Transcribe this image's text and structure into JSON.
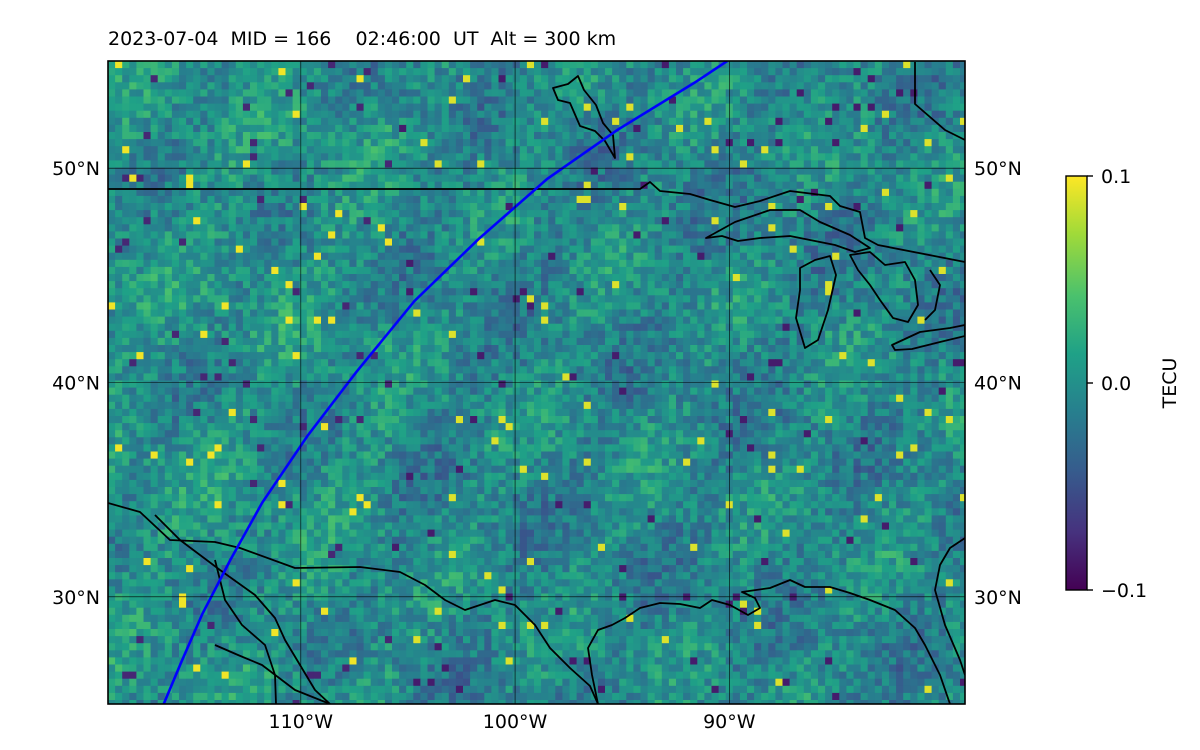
{
  "title": "2023-07-04  MID = 166    02:46:00  UT  Alt = 300 km",
  "map": {
    "lon_range": [
      -119,
      -79
    ],
    "lat_range": [
      25,
      55
    ],
    "lat_ticks": [
      {
        "value": 50,
        "label": "50°N"
      },
      {
        "value": 40,
        "label": "40°N"
      },
      {
        "value": 30,
        "label": "30°N"
      }
    ],
    "lon_ticks": [
      {
        "value": -110,
        "label": "110°W"
      },
      {
        "value": -100,
        "label": "100°W"
      },
      {
        "value": -90,
        "label": "90°W"
      }
    ],
    "satellite_track_color": "#0000ff",
    "satellite_track": [
      [
        -116.4,
        25.0
      ],
      [
        -115.6,
        26.9
      ],
      [
        -114.6,
        29.2
      ],
      [
        -113.3,
        31.7
      ],
      [
        -111.8,
        34.4
      ],
      [
        -109.7,
        37.5
      ],
      [
        -107.4,
        40.5
      ],
      [
        -104.7,
        43.8
      ],
      [
        -101.7,
        46.7
      ],
      [
        -98.5,
        49.5
      ],
      [
        -95.2,
        51.8
      ],
      [
        -91.6,
        54.0
      ],
      [
        -90.1,
        55.0
      ]
    ]
  },
  "colorbar": {
    "label": "TECU",
    "min": -0.1,
    "max": 0.1,
    "colormap": "viridis",
    "ticks": [
      {
        "value": 0.1,
        "label": "0.1"
      },
      {
        "value": 0.0,
        "label": "0.0"
      },
      {
        "value": -0.1,
        "label": "−0.1"
      }
    ]
  }
}
